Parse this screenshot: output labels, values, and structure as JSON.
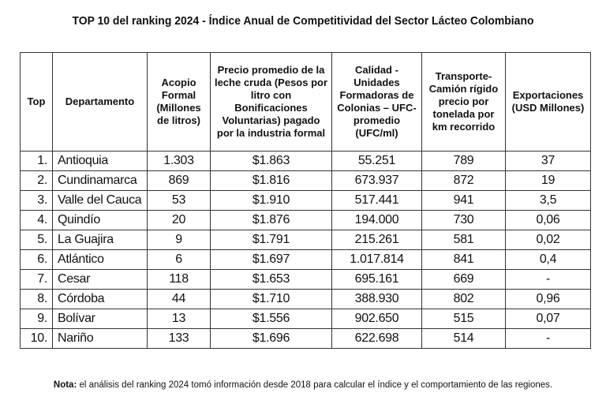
{
  "title": "TOP 10 del ranking 2024 - Índice Anual de Competitividad del Sector Lácteo Colombiano",
  "headers": [
    "Top",
    "Departamento",
    "Acopio Formal (Millones de litros)",
    "Precio promedio de la leche cruda (Pesos por litro con Bonificaciones Voluntarias) pagado por la industria formal",
    "Calidad - Unidades Formadoras de Colonias – UFC- promedio (UFC/ml)",
    "Transporte- Camión rígido precio por tonelada por km recorrido",
    "Exportaciones (USD Millones)"
  ],
  "rows": [
    [
      "1.",
      "Antioquia",
      "1.303",
      "$1.863",
      "55.251",
      "789",
      "37"
    ],
    [
      "2.",
      "Cundinamarca",
      "869",
      "$1.816",
      "673.937",
      "872",
      "19"
    ],
    [
      "3.",
      "Valle del Cauca",
      "53",
      "$1.910",
      "517.441",
      "941",
      "3,5"
    ],
    [
      "4.",
      "Quindío",
      "20",
      "$1.876",
      "194.000",
      "730",
      "0,06"
    ],
    [
      "5.",
      "La Guajira",
      "9",
      "$1.791",
      "215.261",
      "581",
      "0,02"
    ],
    [
      "6.",
      "Atlántico",
      "6",
      "$1.697",
      "1.017.814",
      "841",
      "0,4"
    ],
    [
      "7.",
      "Cesar",
      "118",
      "$1.653",
      "695.161",
      "669",
      "-"
    ],
    [
      "8.",
      "Córdoba",
      "44",
      "$1.710",
      "388.930",
      "802",
      "0,96"
    ],
    [
      "9.",
      "Bolívar",
      "13",
      "$1.556",
      "902.650",
      "515",
      "0,07"
    ],
    [
      "10.",
      "Nariño",
      "133",
      "$1.696",
      "622.698",
      "514",
      "-"
    ]
  ],
  "note": {
    "label": "Nota:",
    "text": " el análisis del ranking 2024 tomó información desde 2018 para calcular el índice y el comportamiento de las regiones."
  }
}
